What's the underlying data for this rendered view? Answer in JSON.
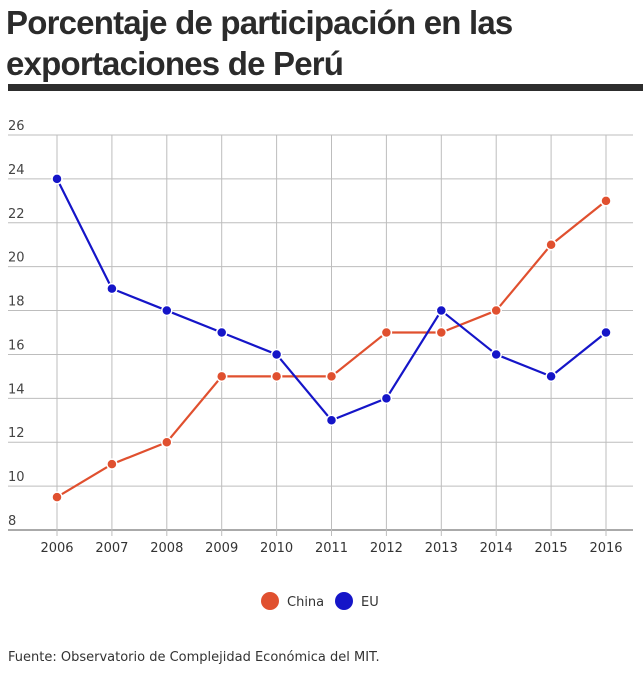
{
  "title": "Porcentaje de participación en las exportaciones de Perú",
  "source": "Fuente: Observatorio de Complejidad Económica del MIT.",
  "colors": {
    "China": "#e0502f",
    "EU": "#1515c8",
    "grid": "#bdbdbd",
    "axis": "#555555"
  },
  "chart_data": {
    "type": "line",
    "title": "Porcentaje de participación en las exportaciones de Perú",
    "xlabel": "",
    "ylabel": "",
    "categories": [
      "2006",
      "2007",
      "2008",
      "2009",
      "2010",
      "2011",
      "2012",
      "2013",
      "2014",
      "2015",
      "2016"
    ],
    "yticks": [
      8,
      10,
      12,
      14,
      16,
      18,
      20,
      22,
      24,
      26
    ],
    "ylim": [
      8,
      26
    ],
    "grid": true,
    "legend_position": "bottom-center",
    "series": [
      {
        "name": "China",
        "values": [
          9.5,
          11,
          12,
          15,
          15,
          15,
          17,
          17,
          18,
          21,
          23
        ]
      },
      {
        "name": "EU",
        "values": [
          24,
          19,
          18,
          17,
          16,
          13,
          14,
          18,
          16,
          15,
          17
        ]
      }
    ]
  }
}
